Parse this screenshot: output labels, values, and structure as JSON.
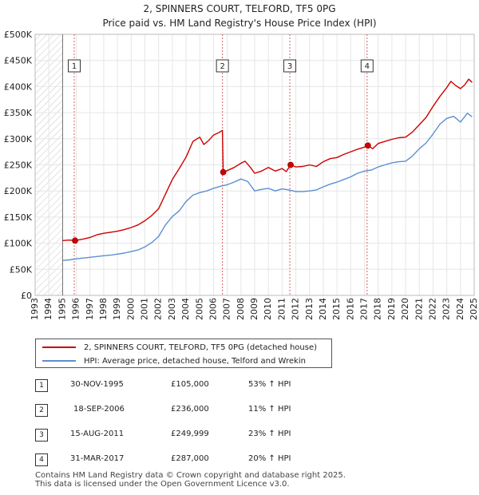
{
  "title_line1": "2, SPINNERS COURT, TELFORD, TF5 0PG",
  "title_line2": "Price paid vs. HM Land Registry's House Price Index (HPI)",
  "chart_data": {
    "type": "line",
    "xlim": [
      1993,
      2025
    ],
    "ylim": [
      0,
      500000
    ],
    "y_ticks": [
      0,
      50000,
      100000,
      150000,
      200000,
      250000,
      300000,
      350000,
      400000,
      450000,
      500000
    ],
    "y_tick_labels": [
      "£0",
      "£50K",
      "£100K",
      "£150K",
      "£200K",
      "£250K",
      "£300K",
      "£350K",
      "£400K",
      "£450K",
      "£500K"
    ],
    "x_ticks": [
      1993,
      1994,
      1995,
      1996,
      1997,
      1998,
      1999,
      2000,
      2001,
      2002,
      2003,
      2004,
      2005,
      2006,
      2007,
      2008,
      2009,
      2010,
      2011,
      2012,
      2013,
      2014,
      2015,
      2016,
      2017,
      2018,
      2019,
      2020,
      2021,
      2022,
      2023,
      2024,
      2025
    ],
    "x_tick_labels": [
      "1993",
      "1994",
      "1995",
      "1996",
      "1997",
      "1998",
      "1999",
      "2000",
      "2001",
      "2002",
      "2003",
      "2004",
      "2005",
      "2006",
      "2007",
      "2008",
      "2009",
      "2010",
      "2011",
      "2012",
      "2013",
      "2014",
      "2015",
      "2016",
      "2017",
      "2018",
      "2019",
      "2020",
      "2021",
      "2022",
      "2023",
      "2024",
      "2025"
    ],
    "hatched_before": 1995.0,
    "grid": true,
    "series": [
      {
        "name": "2, SPINNERS COURT, TELFORD, TF5 0PG (detached house)",
        "color": "#cc0000",
        "points": [
          [
            1995.0,
            105000
          ],
          [
            1995.5,
            106000
          ],
          [
            1995.91,
            105000
          ],
          [
            1996.5,
            108000
          ],
          [
            1997.0,
            111000
          ],
          [
            1997.5,
            116000
          ],
          [
            1998.0,
            119000
          ],
          [
            1998.5,
            121000
          ],
          [
            1999.0,
            123000
          ],
          [
            1999.5,
            126000
          ],
          [
            2000.0,
            130000
          ],
          [
            2000.5,
            135000
          ],
          [
            2001.0,
            143000
          ],
          [
            2001.5,
            153000
          ],
          [
            2002.0,
            166000
          ],
          [
            2002.5,
            194000
          ],
          [
            2003.0,
            222000
          ],
          [
            2003.5,
            243000
          ],
          [
            2004.0,
            265000
          ],
          [
            2004.5,
            295000
          ],
          [
            2005.0,
            303000
          ],
          [
            2005.3,
            289000
          ],
          [
            2005.7,
            298000
          ],
          [
            2006.0,
            307000
          ],
          [
            2006.4,
            312000
          ],
          [
            2006.65,
            316000
          ],
          [
            2006.71,
            236000
          ],
          [
            2007.0,
            239000
          ],
          [
            2007.5,
            245000
          ],
          [
            2008.0,
            253000
          ],
          [
            2008.3,
            257000
          ],
          [
            2008.7,
            245000
          ],
          [
            2009.0,
            234000
          ],
          [
            2009.5,
            238000
          ],
          [
            2010.0,
            245000
          ],
          [
            2010.5,
            238000
          ],
          [
            2011.0,
            243000
          ],
          [
            2011.3,
            237000
          ],
          [
            2011.62,
            249999
          ],
          [
            2012.0,
            246000
          ],
          [
            2012.5,
            247000
          ],
          [
            2013.0,
            250000
          ],
          [
            2013.5,
            247000
          ],
          [
            2014.0,
            256000
          ],
          [
            2014.5,
            262000
          ],
          [
            2015.0,
            264000
          ],
          [
            2015.5,
            270000
          ],
          [
            2016.0,
            275000
          ],
          [
            2016.5,
            280000
          ],
          [
            2017.0,
            284000
          ],
          [
            2017.25,
            287000
          ],
          [
            2017.6,
            281000
          ],
          [
            2018.0,
            291000
          ],
          [
            2018.5,
            295000
          ],
          [
            2019.0,
            299000
          ],
          [
            2019.5,
            302000
          ],
          [
            2020.0,
            303000
          ],
          [
            2020.5,
            313000
          ],
          [
            2021.0,
            327000
          ],
          [
            2021.5,
            341000
          ],
          [
            2022.0,
            362000
          ],
          [
            2022.5,
            381000
          ],
          [
            2023.0,
            398000
          ],
          [
            2023.3,
            410000
          ],
          [
            2023.6,
            403000
          ],
          [
            2024.0,
            396000
          ],
          [
            2024.3,
            403000
          ],
          [
            2024.6,
            414000
          ],
          [
            2024.85,
            408000
          ]
        ]
      },
      {
        "name": "HPI: Average price, detached house, Telford and Wrekin",
        "color": "#5b8fd2",
        "points": [
          [
            1995.0,
            67000
          ],
          [
            1995.5,
            68000
          ],
          [
            1996.0,
            70000
          ],
          [
            1996.5,
            71500
          ],
          [
            1997.0,
            73000
          ],
          [
            1997.5,
            74500
          ],
          [
            1998.0,
            76000
          ],
          [
            1998.5,
            77000
          ],
          [
            1999.0,
            79000
          ],
          [
            1999.5,
            81000
          ],
          [
            2000.0,
            84000
          ],
          [
            2000.5,
            87000
          ],
          [
            2001.0,
            93000
          ],
          [
            2001.5,
            101000
          ],
          [
            2002.0,
            113000
          ],
          [
            2002.5,
            135000
          ],
          [
            2003.0,
            151000
          ],
          [
            2003.5,
            162000
          ],
          [
            2004.0,
            180000
          ],
          [
            2004.5,
            192000
          ],
          [
            2005.0,
            197000
          ],
          [
            2005.5,
            200000
          ],
          [
            2006.0,
            205000
          ],
          [
            2006.5,
            209000
          ],
          [
            2007.0,
            212000
          ],
          [
            2007.5,
            217000
          ],
          [
            2008.0,
            223000
          ],
          [
            2008.5,
            218000
          ],
          [
            2009.0,
            200000
          ],
          [
            2009.5,
            203000
          ],
          [
            2010.0,
            205000
          ],
          [
            2010.5,
            200000
          ],
          [
            2011.0,
            204000
          ],
          [
            2011.5,
            202000
          ],
          [
            2012.0,
            199000
          ],
          [
            2012.5,
            199000
          ],
          [
            2013.0,
            200000
          ],
          [
            2013.5,
            202000
          ],
          [
            2014.0,
            208000
          ],
          [
            2014.5,
            213000
          ],
          [
            2015.0,
            217000
          ],
          [
            2015.5,
            222000
          ],
          [
            2016.0,
            227000
          ],
          [
            2016.5,
            234000
          ],
          [
            2017.0,
            238000
          ],
          [
            2017.5,
            240000
          ],
          [
            2018.0,
            246000
          ],
          [
            2018.5,
            250000
          ],
          [
            2019.0,
            254000
          ],
          [
            2019.5,
            256000
          ],
          [
            2020.0,
            257000
          ],
          [
            2020.5,
            267000
          ],
          [
            2021.0,
            281000
          ],
          [
            2021.5,
            292000
          ],
          [
            2022.0,
            309000
          ],
          [
            2022.5,
            328000
          ],
          [
            2023.0,
            339000
          ],
          [
            2023.5,
            343000
          ],
          [
            2024.0,
            332000
          ],
          [
            2024.5,
            349000
          ],
          [
            2024.85,
            342000
          ]
        ]
      }
    ],
    "sales": [
      {
        "label": "1",
        "x": 1995.91,
        "price": 105000
      },
      {
        "label": "2",
        "x": 2006.71,
        "price": 236000
      },
      {
        "label": "3",
        "x": 2011.62,
        "price": 249999
      },
      {
        "label": "4",
        "x": 2017.25,
        "price": 287000
      }
    ]
  },
  "legend": {
    "red_label": "2, SPINNERS COURT, TELFORD, TF5 0PG (detached house)",
    "blue_label": "HPI: Average price, detached house, Telford and Wrekin",
    "red_color": "#cc0000",
    "blue_color": "#5b8fd2"
  },
  "sales_table": [
    {
      "num": "1",
      "date": "30-NOV-1995",
      "price": "£105,000",
      "hpi": "53% ↑ HPI"
    },
    {
      "num": "2",
      "date": "18-SEP-2006",
      "price": "£236,000",
      "hpi": "11% ↑ HPI"
    },
    {
      "num": "3",
      "date": "15-AUG-2011",
      "price": "£249,999",
      "hpi": "23% ↑ HPI"
    },
    {
      "num": "4",
      "date": "31-MAR-2017",
      "price": "£287,000",
      "hpi": "20% ↑ HPI"
    }
  ],
  "footer_line1": "Contains HM Land Registry data © Crown copyright and database right 2025.",
  "footer_line2": "This data is licensed under the Open Government Licence v3.0."
}
